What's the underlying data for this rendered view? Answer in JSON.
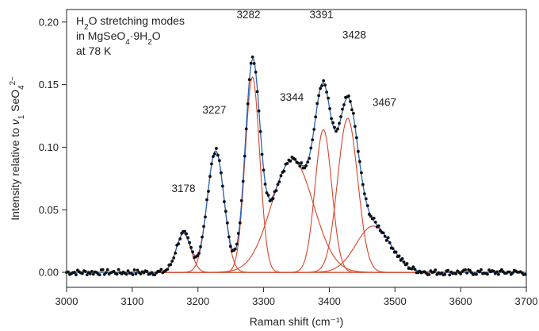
{
  "chart_data": {
    "type": "line",
    "title_lines": [
      {
        "parts": [
          {
            "t": "H"
          },
          {
            "t": "2",
            "sub": true
          },
          {
            "t": "O stretching modes"
          }
        ]
      },
      {
        "parts": [
          {
            "t": "in MgSeO"
          },
          {
            "t": "4",
            "sub": true
          },
          {
            "t": "·9H"
          },
          {
            "t": "2",
            "sub": true
          },
          {
            "t": "O"
          }
        ]
      },
      {
        "parts": [
          {
            "t": "at 78 K"
          }
        ]
      }
    ],
    "xlabel": "Raman shift (cm⁻¹)",
    "ylabel_parts": [
      {
        "t": "Intensity relative to "
      },
      {
        "t": "ν",
        "italic": true
      },
      {
        "t": "1",
        "sub": true
      },
      {
        "t": " SeO"
      },
      {
        "t": "4",
        "sub": true
      },
      {
        "t": "2−",
        "sup": true
      }
    ],
    "xlim": [
      3000,
      3700
    ],
    "ylim": [
      -0.012,
      0.21
    ],
    "xticks": [
      "3000",
      "3100",
      "3200",
      "3300",
      "3400",
      "3500",
      "3600",
      "3700"
    ],
    "yticks": [
      "0.00",
      "0.05",
      "0.10",
      "0.15",
      "0.20"
    ],
    "peaks": [
      {
        "label": "3178",
        "center": 3178,
        "amplitude": 0.031,
        "fwhm": 26,
        "label_x": 3178,
        "label_y": 0.064
      },
      {
        "label": "3227",
        "center": 3227,
        "amplitude": 0.097,
        "fwhm": 30,
        "label_x": 3225,
        "label_y": 0.127
      },
      {
        "label": "3282",
        "center": 3283,
        "amplitude": 0.156,
        "fwhm": 26,
        "label_x": 3277,
        "label_y": 0.203
      },
      {
        "label": "3344",
        "center": 3344,
        "amplitude": 0.09,
        "fwhm": 75,
        "label_x": 3343,
        "label_y": 0.137
      },
      {
        "label": "3391",
        "center": 3391,
        "amplitude": 0.114,
        "fwhm": 30,
        "label_x": 3388,
        "label_y": 0.203
      },
      {
        "label": "3428",
        "center": 3428,
        "amplitude": 0.123,
        "fwhm": 36,
        "label_x": 3438,
        "label_y": 0.187
      },
      {
        "label": "3467",
        "center": 3467,
        "amplitude": 0.037,
        "fwhm": 62,
        "label_x": 3484,
        "label_y": 0.133
      }
    ],
    "colors": {
      "component": "#d9452a",
      "envelope": "#2a64b8",
      "points": "#111111",
      "axis": "#222222"
    },
    "series": [
      {
        "kind": "observed-points",
        "style": "black dots"
      },
      {
        "kind": "fitted-envelope",
        "style": "blue line"
      },
      {
        "kind": "component-peaks",
        "style": "red lines"
      }
    ],
    "grid": false,
    "legend": "none"
  }
}
